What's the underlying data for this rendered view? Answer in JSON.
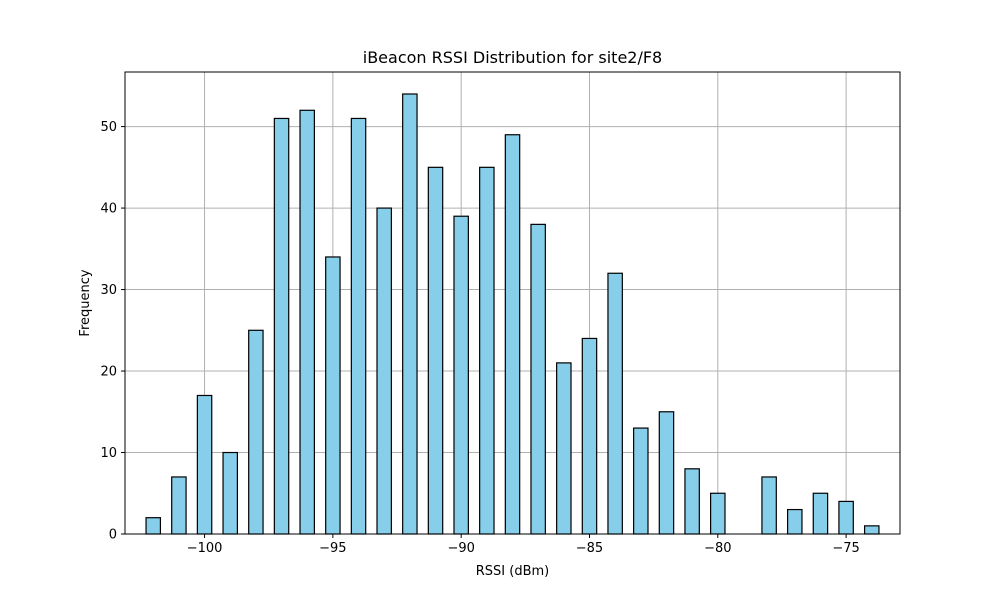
{
  "chart_data": {
    "type": "bar",
    "title": "iBeacon RSSI Distribution for site2/F8",
    "xlabel": "RSSI (dBm)",
    "ylabel": "Frequency",
    "xlim": [
      -103.1,
      -72.9
    ],
    "ylim": [
      0,
      56.7
    ],
    "xticks": [
      -100,
      -95,
      -90,
      -85,
      -80,
      -75
    ],
    "xtick_labels": [
      "−100",
      "−95",
      "−90",
      "−85",
      "−80",
      "−75"
    ],
    "yticks": [
      0,
      10,
      20,
      30,
      40,
      50
    ],
    "yticks_labels": [
      "0",
      "10",
      "20",
      "30",
      "40",
      "50"
    ],
    "grid": true,
    "bar_color": "#87CEEB",
    "edge_color": "#000000",
    "bin_width": 0.56,
    "bins": [
      {
        "x": -102,
        "value": 2
      },
      {
        "x": -101,
        "value": 7
      },
      {
        "x": -100,
        "value": 17
      },
      {
        "x": -99,
        "value": 10
      },
      {
        "x": -98,
        "value": 25
      },
      {
        "x": -97,
        "value": 51
      },
      {
        "x": -96,
        "value": 52
      },
      {
        "x": -95,
        "value": 34
      },
      {
        "x": -94,
        "value": 51
      },
      {
        "x": -93,
        "value": 40
      },
      {
        "x": -92,
        "value": 54
      },
      {
        "x": -91,
        "value": 45
      },
      {
        "x": -90,
        "value": 39
      },
      {
        "x": -89,
        "value": 45
      },
      {
        "x": -88,
        "value": 49
      },
      {
        "x": -87,
        "value": 38
      },
      {
        "x": -86,
        "value": 21
      },
      {
        "x": -85,
        "value": 24
      },
      {
        "x": -84,
        "value": 32
      },
      {
        "x": -83,
        "value": 13
      },
      {
        "x": -82,
        "value": 15
      },
      {
        "x": -81,
        "value": 8
      },
      {
        "x": -80,
        "value": 5
      },
      {
        "x": -78,
        "value": 7
      },
      {
        "x": -77,
        "value": 3
      },
      {
        "x": -76,
        "value": 5
      },
      {
        "x": -75,
        "value": 4
      },
      {
        "x": -74,
        "value": 1
      }
    ]
  }
}
